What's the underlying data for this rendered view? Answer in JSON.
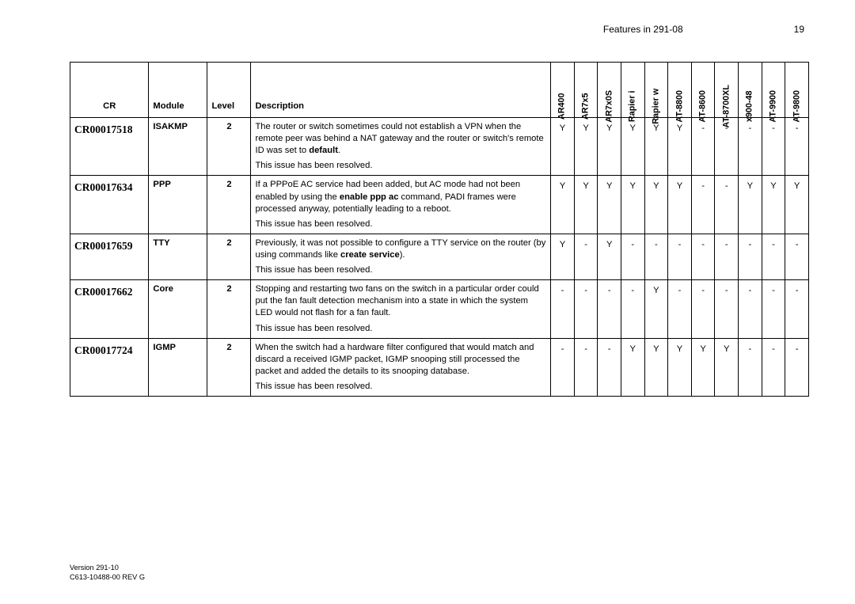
{
  "header": {
    "title": "Features in 291-08",
    "page": "19"
  },
  "columns": {
    "cr": "CR",
    "module": "Module",
    "level": "Level",
    "description": "Description",
    "products": [
      "AR400",
      "AR7x5",
      "AR7x0S",
      "Rapier i",
      "Rapier w",
      "AT-8800",
      "AT-8600",
      "AT-8700XL",
      "x900-48",
      "AT-9900",
      "AT-9800"
    ]
  },
  "rows": [
    {
      "cr": "CR00017518",
      "module": "ISAKMP",
      "level": "2",
      "products": [
        "Y",
        "Y",
        "Y",
        "Y",
        "Y",
        "Y",
        "-",
        "-",
        "-",
        "-",
        "-"
      ]
    },
    {
      "cr": "CR00017634",
      "module": "PPP",
      "level": "2",
      "products": [
        "Y",
        "Y",
        "Y",
        "Y",
        "Y",
        "Y",
        "-",
        "-",
        "Y",
        "Y",
        "Y"
      ]
    },
    {
      "cr": "CR00017659",
      "module": "TTY",
      "level": "2",
      "products": [
        "Y",
        "-",
        "Y",
        "-",
        "-",
        "-",
        "-",
        "-",
        "-",
        "-",
        "-"
      ]
    },
    {
      "cr": "CR00017662",
      "module": "Core",
      "level": "2",
      "products": [
        "-",
        "-",
        "-",
        "-",
        "Y",
        "-",
        "-",
        "-",
        "-",
        "-",
        "-"
      ]
    },
    {
      "cr": "CR00017724",
      "module": "IGMP",
      "level": "2",
      "products": [
        "-",
        "-",
        "-",
        "Y",
        "Y",
        "Y",
        "Y",
        "Y",
        "-",
        "-",
        "-"
      ]
    }
  ],
  "footer": {
    "line1": "Version 291-10",
    "line2": "C613-10488-00 REV G"
  },
  "resolved": "This issue has been resolved."
}
